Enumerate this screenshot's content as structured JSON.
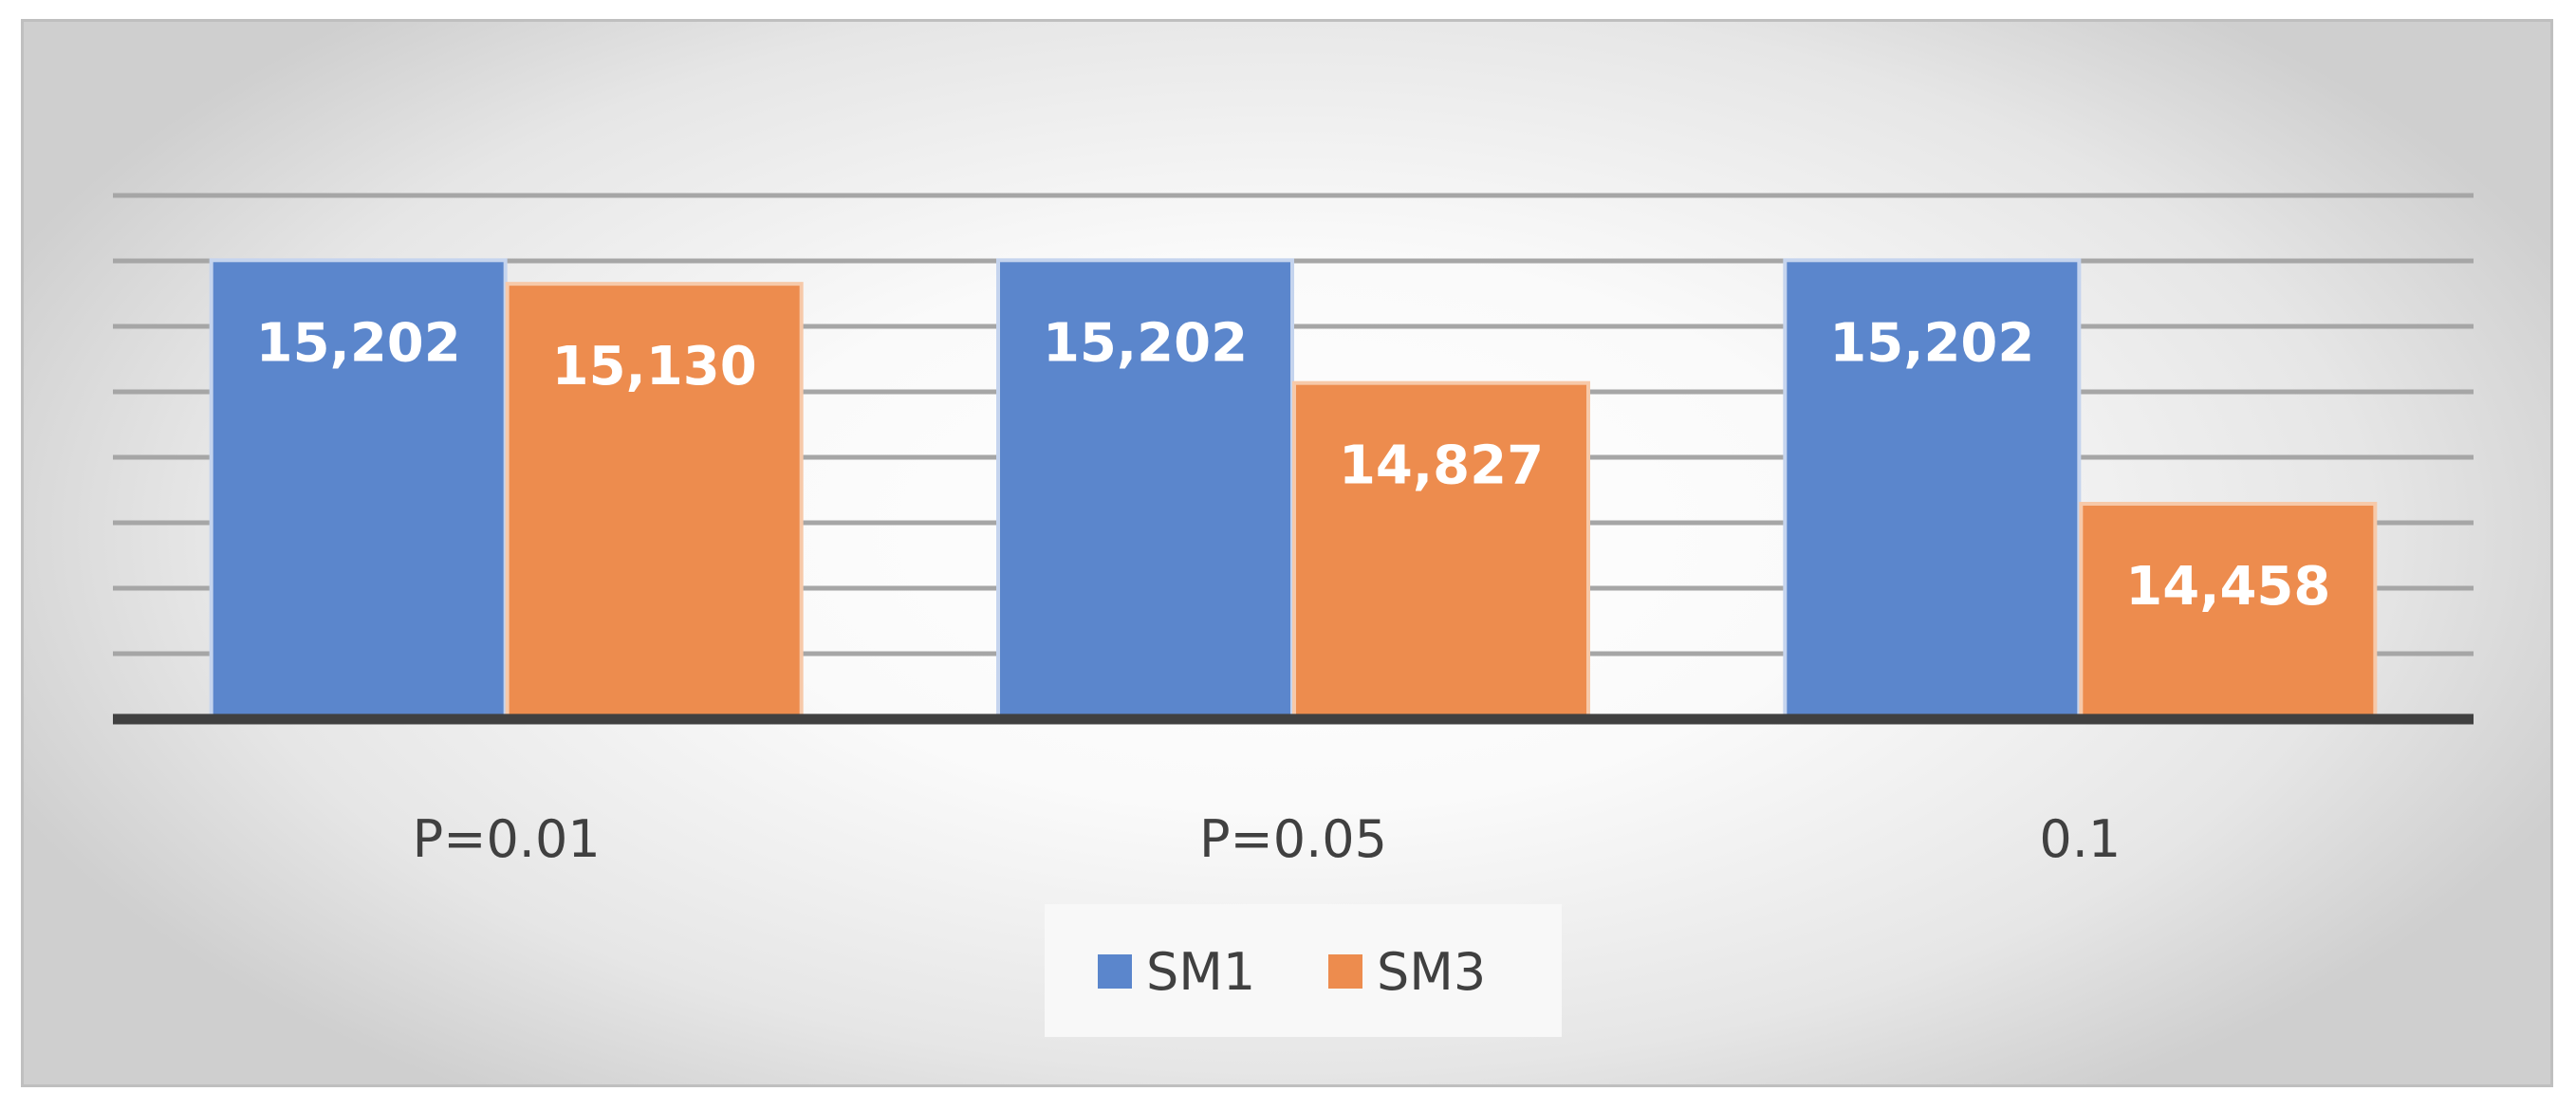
{
  "chart_data": {
    "type": "bar",
    "categories": [
      "P=0.01",
      "P=0.05",
      "0.1"
    ],
    "series": [
      {
        "name": "SM1",
        "values": [
          15202,
          15202,
          15202
        ],
        "labels": [
          "15,202",
          "15,202",
          "15,202"
        ],
        "color": "#5b86cc"
      },
      {
        "name": "SM3",
        "values": [
          15130,
          14827,
          14458
        ],
        "labels": [
          "15,130",
          "14,827",
          "14,458"
        ],
        "color": "#ed8c4e"
      }
    ],
    "ylim": [
      13800,
      15400
    ],
    "gridline_step": 200,
    "grid": true,
    "show_y_tick_labels": false,
    "data_labels": true,
    "legend_position": "bottom-center",
    "title": "",
    "xlabel": "",
    "ylabel": ""
  }
}
